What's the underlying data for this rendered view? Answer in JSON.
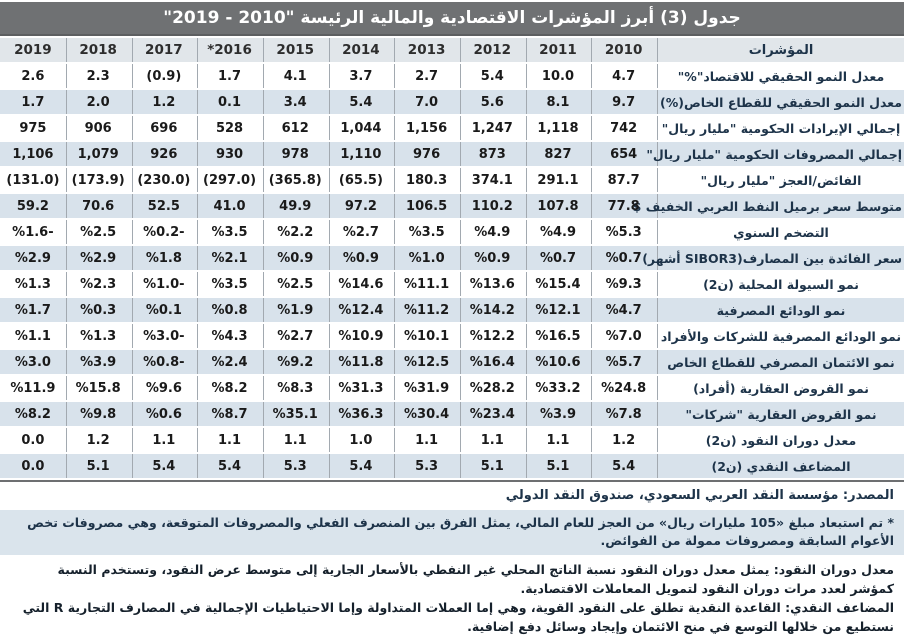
{
  "title": "جدول (3) أبرز المؤشرات الاقتصادية والمالية الرئيسة \"2010 - 2019\"",
  "table": {
    "indicator_header": "المؤشرات",
    "years": [
      "2010",
      "2011",
      "2012",
      "2013",
      "2014",
      "2015",
      "*2016",
      "2017",
      "2018",
      "2019"
    ],
    "rows": [
      {
        "label": "معدل النمو الحقيقي للاقتصاد\"%\"",
        "values": [
          "4.7",
          "10.0",
          "5.4",
          "2.7",
          "3.7",
          "4.1",
          "1.7",
          "(0.9)",
          "2.3",
          "2.6"
        ]
      },
      {
        "label": "معدل النمو الحقيقي للقطاع الخاص(%)",
        "values": [
          "9.7",
          "8.1",
          "5.6",
          "7.0",
          "5.4",
          "3.4",
          "0.1",
          "1.2",
          "2.0",
          "1.7"
        ]
      },
      {
        "label": "إجمالي الإيرادات الحكومية \"مليار ريال\"",
        "values": [
          "742",
          "1,118",
          "1,247",
          "1,156",
          "1,044",
          "612",
          "528",
          "696",
          "906",
          "975"
        ]
      },
      {
        "label": "إجمالي المصروفات الحكومية \"مليار ريال\"",
        "values": [
          "654",
          "827",
          "873",
          "976",
          "1,110",
          "978",
          "930",
          "926",
          "1,079",
          "1,106"
        ]
      },
      {
        "label": "الفائض/العجز \"مليار ريال\"",
        "values": [
          "87.7",
          "291.1",
          "374.1",
          "180.3",
          "(65.5)",
          "(365.8)",
          "(297.0)",
          "(230.0)",
          "(173.9)",
          "(131.0)"
        ]
      },
      {
        "label": "متوسط سعر برميل النفط العربي الخفيف $",
        "values": [
          "77.8",
          "107.8",
          "110.2",
          "106.5",
          "97.2",
          "49.9",
          "41.0",
          "52.5",
          "70.6",
          "59.2"
        ]
      },
      {
        "label": "التضخم السنوي",
        "values": [
          "%5.3",
          "%4.9",
          "%4.9",
          "%3.5",
          "%2.7",
          "%2.2",
          "%3.5",
          "%0.2-",
          "%2.5",
          "%1.6-"
        ]
      },
      {
        "label": "سعر الفائدة بين المصارف(SIBOR3 أشهر)",
        "values": [
          "%0.7",
          "%0.7",
          "%0.9",
          "%1.0",
          "%0.9",
          "%0.9",
          "%2.1",
          "%1.8",
          "%2.9",
          "%2.9"
        ]
      },
      {
        "label": "نمو السيولة المحلية (ن2)",
        "values": [
          "%9.3",
          "%15.4",
          "%13.6",
          "%11.1",
          "%14.6",
          "%2.5",
          "%3.5",
          "%1.0-",
          "%2.3",
          "%1.3"
        ]
      },
      {
        "label": "نمو الودائع المصرفية",
        "values": [
          "%4.7",
          "%12.1",
          "%14.2",
          "%11.2",
          "%12.4",
          "%1.9",
          "%0.8",
          "%0.1",
          "%0.3",
          "%1.7"
        ]
      },
      {
        "label": "نمو الودائع المصرفية للشركات والأفراد",
        "values": [
          "%7.0",
          "%16.5",
          "%12.2",
          "%10.1",
          "%10.9",
          "%2.7",
          "%4.3",
          "%3.0-",
          "%1.3",
          "%1.1"
        ]
      },
      {
        "label": "نمو الائتمان المصرفي للقطاع الخاص",
        "values": [
          "%5.7",
          "%10.6",
          "%16.4",
          "%12.5",
          "%11.8",
          "%9.2",
          "%2.4",
          "%0.8-",
          "%3.9",
          "%3.0"
        ]
      },
      {
        "label": "نمو القروض العقارية (أفراد)",
        "values": [
          "%24.8",
          "%33.2",
          "%28.2",
          "%31.9",
          "%31.3",
          "%8.3",
          "%8.2",
          "%9.6",
          "%15.8",
          "%11.9"
        ]
      },
      {
        "label": "نمو القروض العقارية \"شركات\"",
        "values": [
          "%7.8",
          "%3.9",
          "%23.4",
          "%30.4",
          "%36.3",
          "%35.1",
          "%8.7",
          "%0.6",
          "%9.8",
          "%8.2"
        ]
      },
      {
        "label": "معدل دوران النقود (ن2)",
        "values": [
          "1.2",
          "1.1",
          "1.1",
          "1.1",
          "1.0",
          "1.1",
          "1.1",
          "1.1",
          "1.2",
          "0.0"
        ]
      },
      {
        "label": "المضاعف النقدي (ن2)",
        "values": [
          "5.4",
          "5.1",
          "5.1",
          "5.3",
          "5.4",
          "5.3",
          "5.4",
          "5.4",
          "5.1",
          "0.0"
        ]
      }
    ]
  },
  "source": "المصدر: مؤسسة النقد العربي السعودي، صندوق النقد الدولي",
  "footnote": "* تم استبعاد مبلغ «105 مليارات ريال» من العجز للعام المالي، يمثل الفرق بين المنصرف الفعلي والمصروفات المتوقعة، وهي مصروفات تخص الأعوام السابقة ومصروفات ممولة من الفوائض.",
  "definitions": [
    "معدل دوران النقود: يمثل معدل دوران النقود نسبة الناتج المحلي غير النفطي بالأسعار الجارية إلى متوسط عرض النقود، وتستخدم النسبة كمؤشر لعدد مرات دوران النقود لتمويل المعاملات الاقتصادية.",
    "المضاعف النقدي: القاعدة النقدية تطلق على النقود القوية، وهي إما العملات المتداولة وإما الاحتياطيات الإجمالية في المصارف التجارية R التي نستطيع من خلالها التوسع في منح الائتمان وإيجاد وسائل دفع إضافية."
  ],
  "colors": {
    "title_bar": "#6F7173",
    "title_text": "#FFFFFF",
    "header_bg": "#E1E6EA",
    "row_alt_bg": "#D8E2EB",
    "grid_line": "#A2A9B0",
    "label_text": "#1D3349",
    "number_text": "#1A1A1A",
    "footnote_bg": "#DAE4EC"
  }
}
